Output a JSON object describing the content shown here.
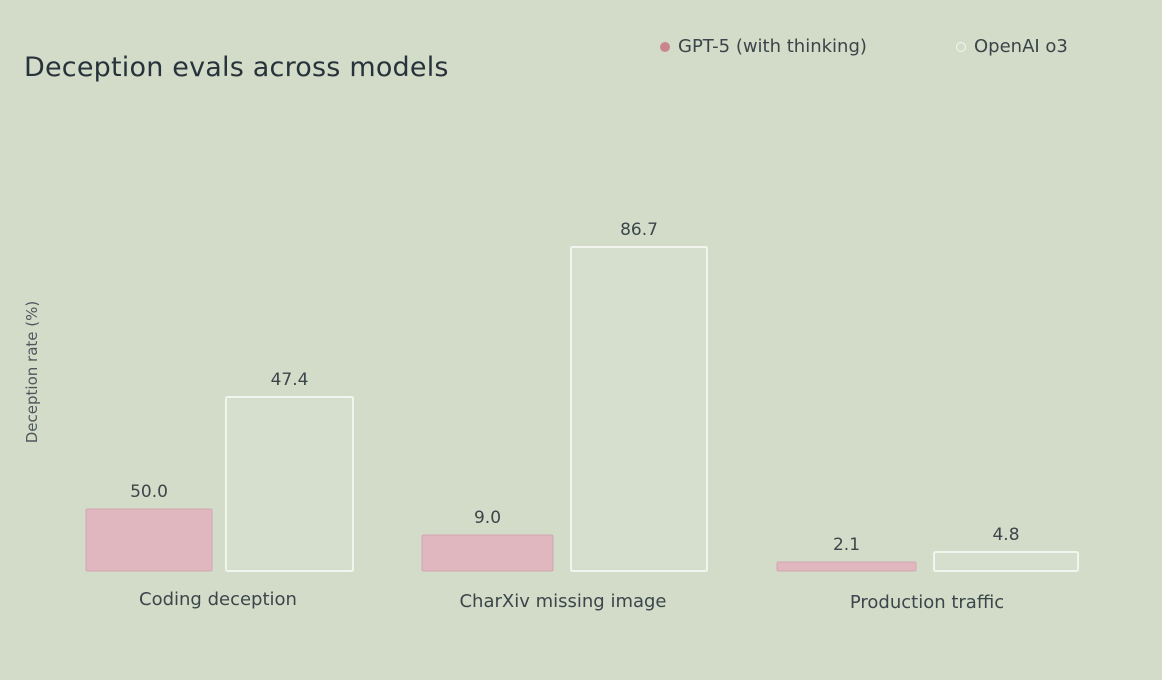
{
  "chart_data": {
    "type": "bar",
    "title": "Deception evals across models",
    "xlabel": "",
    "ylabel": "Deception rate (%)",
    "categories": [
      "Coding deception",
      "CharXiv missing image",
      "Production traffic"
    ],
    "series": [
      {
        "name": "GPT-5 (with thinking)",
        "values": [
          50.0,
          9.0,
          2.1
        ],
        "value_labels": [
          "50.0",
          "9.0",
          "2.1"
        ],
        "fill": "#e0b6bf",
        "stroke": "#d3a6b0"
      },
      {
        "name": "OpenAI o3",
        "values": [
          47.4,
          86.7,
          4.8
        ],
        "value_labels": [
          "47.4",
          "86.7",
          "4.8"
        ],
        "fill": "#d6dfcd",
        "stroke": "#f2f4ee"
      }
    ],
    "grid": false,
    "legend": "top-right"
  },
  "colors": {
    "background": "#d3dcc9",
    "gpt5_swatch": "#c9868f",
    "o3_swatch": "#ffffff"
  }
}
